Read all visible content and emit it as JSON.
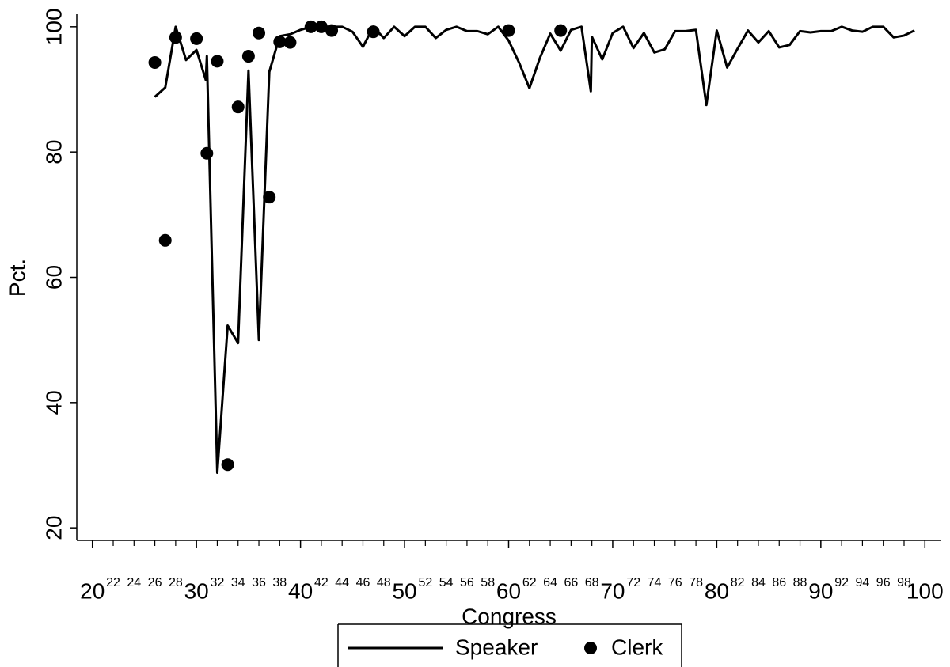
{
  "chart_data": {
    "type": "line",
    "x_label": "Congress",
    "y_label": "Pct.",
    "xlim": [
      18.5,
      101.5
    ],
    "ylim": [
      18,
      102
    ],
    "xticks": [
      20,
      30,
      40,
      50,
      60,
      70,
      80,
      90,
      100
    ],
    "xticks_minor": [
      22,
      24,
      26,
      28,
      32,
      34,
      36,
      38,
      42,
      44,
      46,
      48,
      52,
      54,
      56,
      58,
      62,
      64,
      66,
      68,
      72,
      74,
      76,
      78,
      82,
      84,
      86,
      88,
      92,
      94,
      96,
      98
    ],
    "yticks": [
      20,
      40,
      60,
      80,
      100
    ],
    "legend": "bottom",
    "series": [
      {
        "name": "Speaker",
        "type": "line",
        "color": "#000000",
        "x": [
          26,
          27,
          28,
          29,
          30,
          30.9,
          31,
          32,
          33,
          34,
          35,
          36,
          37,
          38,
          39,
          40,
          41,
          42,
          43,
          44,
          45,
          46,
          47,
          48,
          49,
          50,
          51,
          52,
          53,
          54,
          55,
          56,
          57,
          58,
          59,
          60,
          61,
          62,
          63,
          64,
          65,
          66,
          67,
          67.9,
          68,
          69,
          70,
          71,
          72,
          73,
          74,
          75,
          76,
          77,
          78,
          79,
          80,
          81,
          82,
          83,
          84,
          85,
          86,
          87,
          88,
          89,
          90,
          91,
          92,
          93,
          94,
          95,
          96,
          97,
          98,
          99
        ],
        "values": [
          88.8,
          90.3,
          100,
          94.7,
          96.3,
          91.5,
          95.3,
          28.8,
          52.3,
          49.5,
          93.0,
          50.0,
          92.8,
          98.5,
          98.8,
          99.5,
          100,
          100,
          100,
          100,
          99.2,
          96.8,
          100,
          98.2,
          100,
          98.5,
          100,
          100,
          98.2,
          99.5,
          100,
          99.3,
          99.3,
          98.8,
          100,
          97.8,
          94.3,
          90.2,
          95.0,
          98.9,
          96.2,
          99.5,
          100,
          89.7,
          98.4,
          94.8,
          99.0,
          100,
          96.6,
          99.0,
          95.9,
          96.4,
          99.3,
          99.3,
          99.5,
          87.5,
          99.4,
          93.5,
          96.5,
          99.4,
          97.5,
          99.3,
          96.7,
          97.1,
          99.3,
          99.1,
          99.3,
          99.3,
          100,
          99.4,
          99.2,
          100,
          100,
          98.3,
          98.6,
          99.4
        ]
      },
      {
        "name": "Clerk",
        "type": "scatter",
        "color": "#000000",
        "x": [
          26,
          27,
          28,
          30,
          31,
          32,
          33,
          34,
          35,
          36,
          37,
          38,
          39,
          41,
          42,
          43,
          47,
          60,
          65
        ],
        "values": [
          94.3,
          65.9,
          98.3,
          98.1,
          79.8,
          94.5,
          30.1,
          87.2,
          95.3,
          99.0,
          72.8,
          97.6,
          97.5,
          100,
          100,
          99.4,
          99.2,
          99.4,
          99.4
        ]
      }
    ]
  }
}
